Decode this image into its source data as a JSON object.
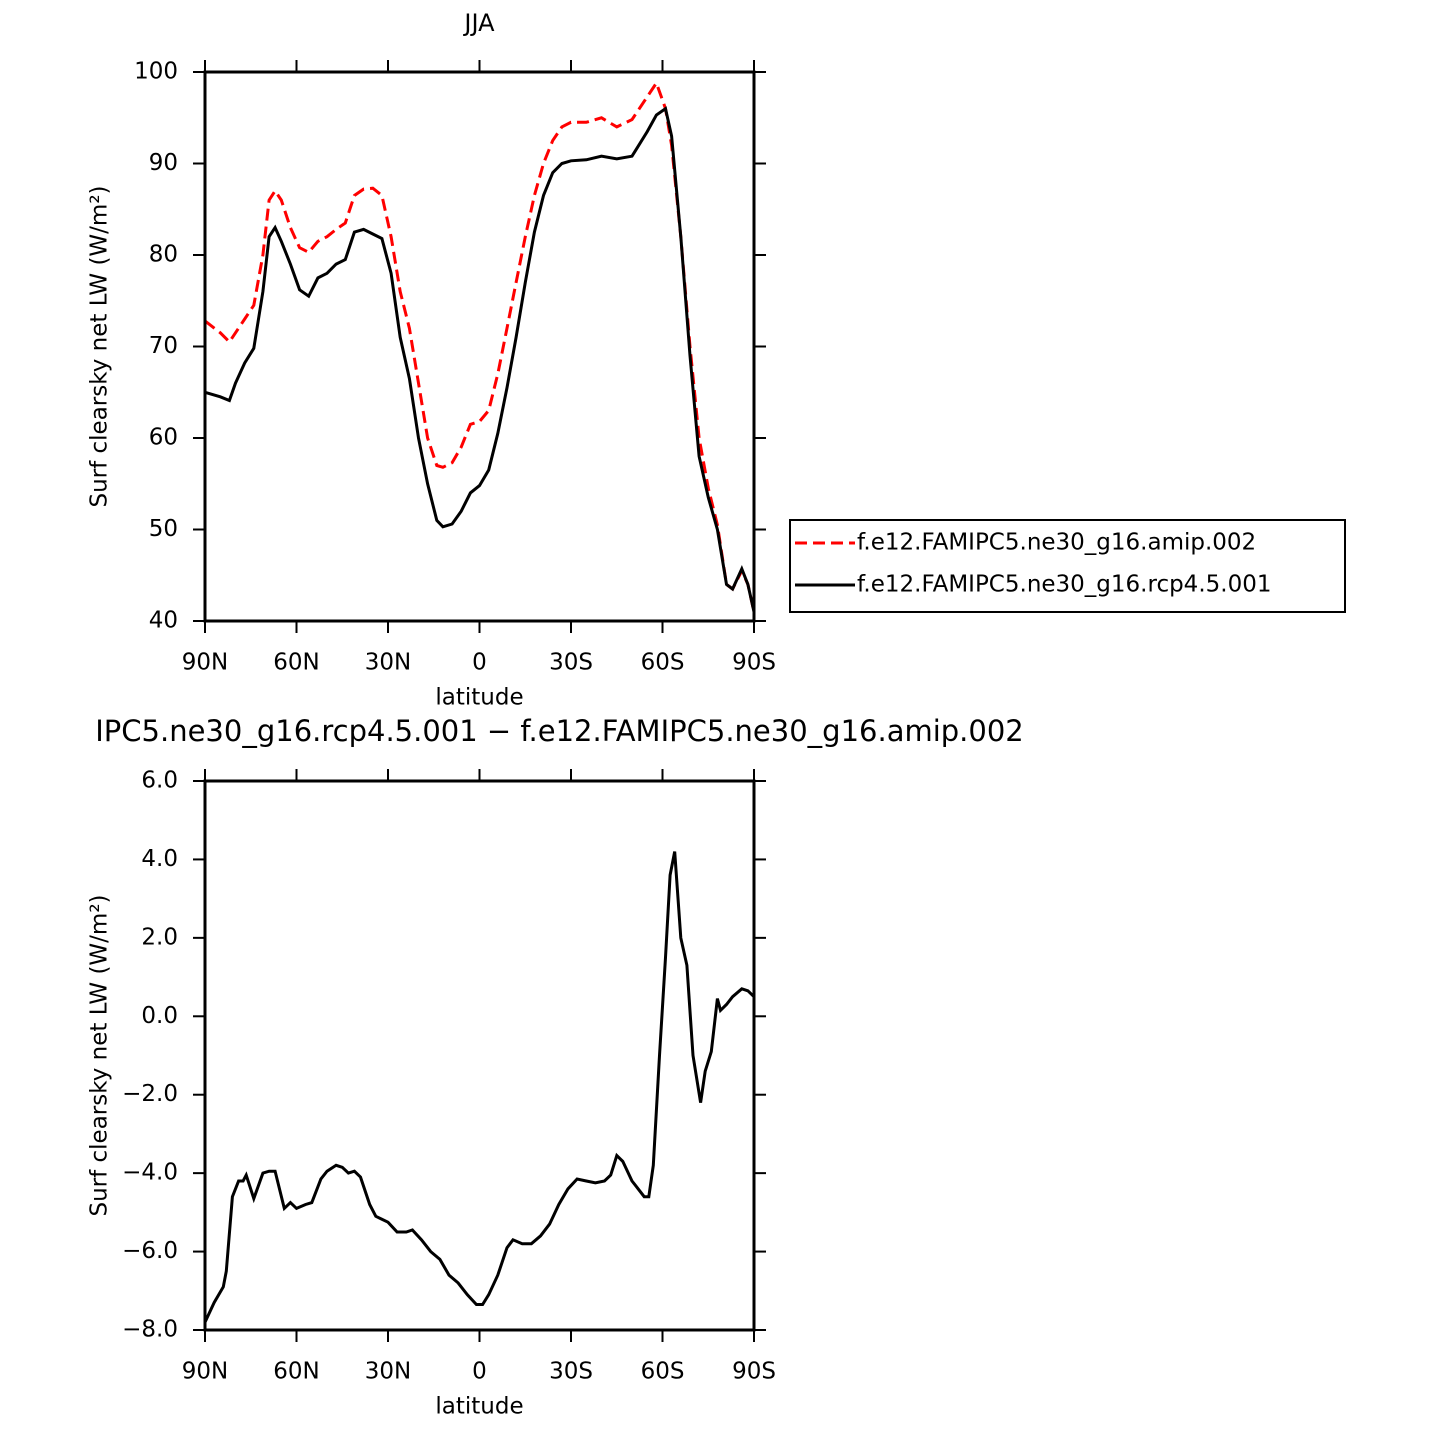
{
  "chart_data": [
    {
      "type": "line",
      "title": "JJA",
      "x_label": "latitude",
      "y_label": "Surf clearsky net LW (W/m²)",
      "x": [
        90,
        85,
        82,
        80,
        77,
        74,
        71,
        69,
        67,
        65,
        62,
        59,
        56,
        53,
        50,
        47,
        44,
        41,
        38,
        35,
        32,
        29,
        26,
        23,
        20,
        17,
        14,
        12,
        9,
        6,
        3,
        0,
        -3,
        -6,
        -9,
        -12,
        -15,
        -18,
        -21,
        -24,
        -27,
        -30,
        -35,
        -40,
        -45,
        -50,
        -55,
        -58,
        -61,
        -63,
        -66,
        -69,
        -72,
        -75,
        -78,
        -81,
        -83,
        -86,
        -88,
        -90
      ],
      "series": [
        {
          "name": "f.e12.FAMIPC5.ne30_g16.amip.002",
          "color": "#ff0000",
          "dash": "dashed",
          "values": [
            72.8,
            71.5,
            70.5,
            71.5,
            73,
            74.5,
            80,
            86,
            87,
            86,
            83,
            80.8,
            80.3,
            81.5,
            82,
            82.8,
            83.5,
            86.5,
            87.2,
            87.3,
            86.5,
            82,
            76,
            72,
            66,
            60,
            57,
            56.8,
            57.3,
            59,
            61.5,
            61.8,
            63,
            67,
            72,
            77,
            82,
            86.5,
            90,
            92.5,
            94,
            94.5,
            94.5,
            95,
            94,
            94.8,
            97.3,
            98.8,
            96,
            92,
            82,
            70,
            60,
            54.5,
            50.5,
            44,
            43.5,
            45.5,
            44,
            41
          ]
        },
        {
          "name": "f.e12.FAMIPC5.ne30_g16.rcp4.5.001",
          "color": "#000000",
          "dash": "solid",
          "values": [
            65,
            64.5,
            64.1,
            66,
            68.2,
            69.8,
            76,
            82,
            83,
            81.5,
            79,
            76.2,
            75.5,
            77.5,
            78,
            79,
            79.5,
            82.5,
            82.8,
            82.3,
            81.8,
            78,
            71,
            66.5,
            60,
            55,
            51,
            50.3,
            50.6,
            52,
            54,
            54.8,
            56.5,
            60.5,
            65.5,
            71,
            77,
            82.5,
            86.5,
            89,
            90,
            90.3,
            90.4,
            90.8,
            90.5,
            90.8,
            93.5,
            95.3,
            96,
            93,
            82,
            69,
            58,
            53.5,
            50,
            44,
            43.5,
            45.7,
            44,
            41
          ]
        }
      ],
      "xlim": [
        90,
        -90
      ],
      "xticks": [
        {
          "value": 90,
          "label": "90N"
        },
        {
          "value": 60,
          "label": "60N"
        },
        {
          "value": 30,
          "label": "30N"
        },
        0,
        {
          "value": -30,
          "label": "30S"
        },
        {
          "value": -60,
          "label": "60S"
        },
        {
          "value": -90,
          "label": "90S"
        }
      ],
      "ylim": [
        40,
        100
      ],
      "yticks": [
        40,
        50,
        60,
        70,
        80,
        90,
        100
      ],
      "legend": "right"
    },
    {
      "type": "line",
      "title": "IPC5.ne30_g16.rcp4.5.001 − f.e12.FAMIPC5.ne30_g16.amip.002",
      "x_label": "latitude",
      "y_label": "Surf clearsky net LW (W/m²)",
      "x": [
        90,
        87,
        84,
        83,
        81,
        79,
        77.5,
        76.5,
        74,
        71,
        69,
        67,
        64,
        62,
        60,
        57,
        55,
        52,
        50,
        47,
        45,
        43,
        41,
        39,
        36,
        34,
        30,
        27,
        24,
        22,
        19,
        16,
        13,
        10,
        7,
        4,
        1,
        -1,
        -3,
        -6,
        -9,
        -11,
        -14,
        -17,
        -20,
        -23,
        -26,
        -29,
        -32,
        -35,
        -38,
        -41,
        -43,
        -45,
        -47,
        -50,
        -52,
        -54,
        -55.5,
        -57,
        -59,
        -61,
        -62.5,
        -64,
        -66,
        -68,
        -70,
        -72.5,
        -74,
        -76,
        -78,
        -79,
        -81,
        -83,
        -86,
        -88,
        -90
      ],
      "series": [
        {
          "color": "#000000",
          "dash": "solid",
          "values": [
            -7.8,
            -7.3,
            -6.9,
            -6.5,
            -4.6,
            -4.2,
            -4.2,
            -4.05,
            -4.65,
            -4.0,
            -3.95,
            -3.95,
            -4.9,
            -4.75,
            -4.9,
            -4.8,
            -4.75,
            -4.15,
            -3.95,
            -3.8,
            -3.85,
            -4.0,
            -3.95,
            -4.1,
            -4.8,
            -5.1,
            -5.25,
            -5.5,
            -5.5,
            -5.45,
            -5.7,
            -6.0,
            -6.2,
            -6.6,
            -6.8,
            -7.1,
            -7.35,
            -7.35,
            -7.1,
            -6.6,
            -5.9,
            -5.7,
            -5.8,
            -5.8,
            -5.6,
            -5.3,
            -4.8,
            -4.4,
            -4.15,
            -4.2,
            -4.25,
            -4.2,
            -4.05,
            -3.55,
            -3.7,
            -4.2,
            -4.4,
            -4.6,
            -4.6,
            -3.8,
            -1.0,
            1.5,
            3.6,
            4.2,
            2.0,
            1.3,
            -1.0,
            -2.2,
            -1.4,
            -0.9,
            0.45,
            0.15,
            0.3,
            0.5,
            0.7,
            0.65,
            0.5
          ]
        }
      ],
      "xlim": [
        90,
        -90
      ],
      "xticks": [
        {
          "value": 90,
          "label": "90N"
        },
        {
          "value": 60,
          "label": "60N"
        },
        {
          "value": 30,
          "label": "30N"
        },
        0,
        {
          "value": -30,
          "label": "30S"
        },
        {
          "value": -60,
          "label": "60S"
        },
        {
          "value": -90,
          "label": "90S"
        }
      ],
      "ylim": [
        -8,
        6
      ],
      "yticks": [
        {
          "value": -8,
          "label": "−8.0"
        },
        {
          "value": -6,
          "label": "−6.0"
        },
        {
          "value": -4,
          "label": "−4.0"
        },
        {
          "value": -2,
          "label": "−2.0"
        },
        {
          "value": 0,
          "label": "0.0"
        },
        {
          "value": 2,
          "label": "2.0"
        },
        {
          "value": 4,
          "label": "4.0"
        },
        {
          "value": 6,
          "label": "6.0"
        }
      ]
    }
  ]
}
